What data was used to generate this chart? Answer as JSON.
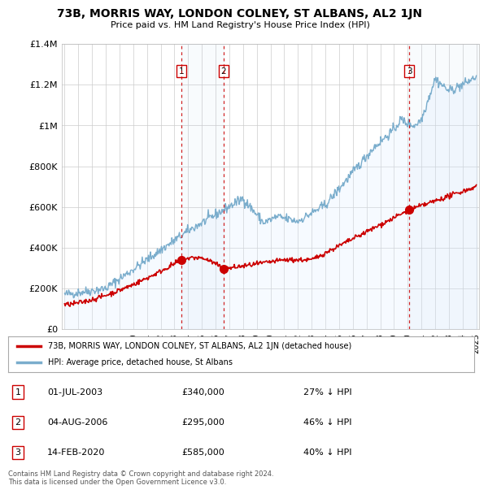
{
  "title": "73B, MORRIS WAY, LONDON COLNEY, ST ALBANS, AL2 1JN",
  "subtitle": "Price paid vs. HM Land Registry's House Price Index (HPI)",
  "ylim": [
    0,
    1400000
  ],
  "yticks": [
    0,
    200000,
    400000,
    600000,
    800000,
    1000000,
    1200000,
    1400000
  ],
  "ytick_labels": [
    "£0",
    "£200K",
    "£400K",
    "£600K",
    "£800K",
    "£1M",
    "£1.2M",
    "£1.4M"
  ],
  "x_start_year": 1995,
  "x_end_year": 2025,
  "property_color": "#cc0000",
  "hpi_color": "#7aadcc",
  "hpi_fill_color": "#ddeeff",
  "vline_color": "#cc0000",
  "sale_points": [
    {
      "year": 2003.5,
      "value": 340000,
      "label": "1"
    },
    {
      "year": 2006.58,
      "value": 295000,
      "label": "2"
    },
    {
      "year": 2020.12,
      "value": 585000,
      "label": "3"
    }
  ],
  "legend_property": "73B, MORRIS WAY, LONDON COLNEY, ST ALBANS, AL2 1JN (detached house)",
  "legend_hpi": "HPI: Average price, detached house, St Albans",
  "table_entries": [
    {
      "num": "1",
      "date": "01-JUL-2003",
      "price": "£340,000",
      "hpi": "27% ↓ HPI"
    },
    {
      "num": "2",
      "date": "04-AUG-2006",
      "price": "£295,000",
      "hpi": "46% ↓ HPI"
    },
    {
      "num": "3",
      "date": "14-FEB-2020",
      "price": "£585,000",
      "hpi": "40% ↓ HPI"
    }
  ],
  "footer": "Contains HM Land Registry data © Crown copyright and database right 2024.\nThis data is licensed under the Open Government Licence v3.0.",
  "background_color": "#ffffff",
  "grid_color": "#cccccc"
}
